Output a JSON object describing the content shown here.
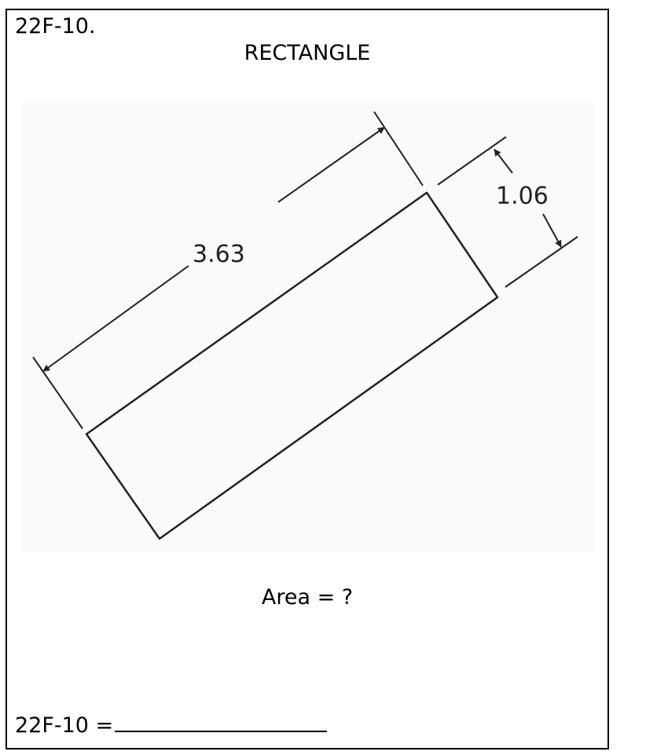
{
  "header": {
    "problem_id": "22F-10.",
    "title": "RECTANGLE"
  },
  "figure": {
    "length_label": "3.63",
    "width_label": "1.06"
  },
  "question": "Area = ?",
  "answer": {
    "label": "22F-10 ="
  }
}
